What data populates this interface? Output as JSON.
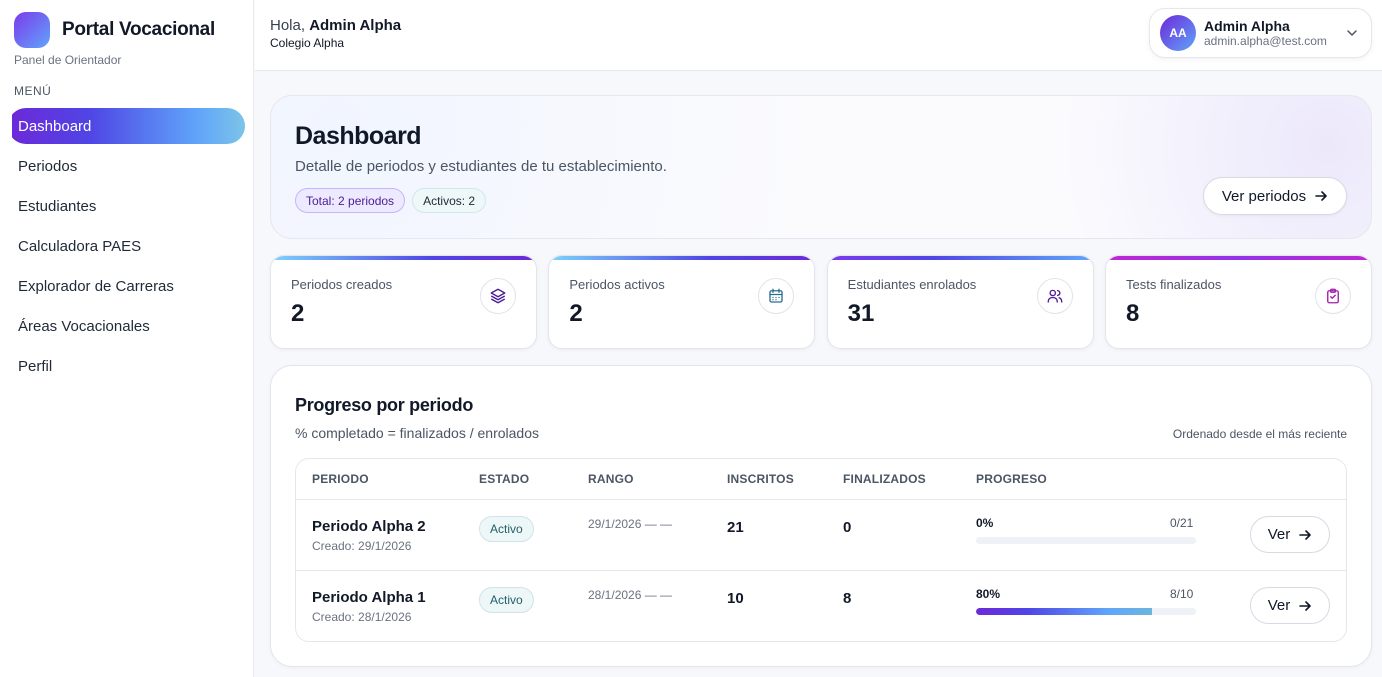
{
  "sidebar": {
    "brand_title": "Portal Vocacional",
    "brand_subtitle": "Panel de Orientador",
    "menu_label": "MENÚ",
    "items": [
      {
        "label": "Dashboard",
        "active": true
      },
      {
        "label": "Periodos",
        "active": false
      },
      {
        "label": "Estudiantes",
        "active": false
      },
      {
        "label": "Calculadora PAES",
        "active": false
      },
      {
        "label": "Explorador de Carreras",
        "active": false
      },
      {
        "label": "Áreas Vocacionales",
        "active": false
      },
      {
        "label": "Perfil",
        "active": false
      }
    ]
  },
  "topbar": {
    "greeting_prefix": "Hola, ",
    "greeting_name": "Admin Alpha",
    "school": "Colegio Alpha",
    "user": {
      "initials": "AA",
      "name": "Admin Alpha",
      "email": "admin.alpha@test.com"
    }
  },
  "hero": {
    "title": "Dashboard",
    "description": "Detalle de periodos y estudiantes de tu establecimiento.",
    "pill_total": "Total: 2 periodos",
    "pill_active": "Activos: 2",
    "button_label": "Ver periodos"
  },
  "stats": [
    {
      "label": "Periodos creados",
      "value": "2",
      "icon": "layers-icon"
    },
    {
      "label": "Periodos activos",
      "value": "2",
      "icon": "calendar-icon"
    },
    {
      "label": "Estudiantes enrolados",
      "value": "31",
      "icon": "users-icon"
    },
    {
      "label": "Tests finalizados",
      "value": "8",
      "icon": "clipboard-check-icon"
    }
  ],
  "progress": {
    "title": "Progreso por periodo",
    "subtitle": "% completado = finalizados / enrolados",
    "sort_note": "Ordenado desde el más reciente",
    "headers": {
      "periodo": "PERIODO",
      "estado": "ESTADO",
      "rango": "RANGO",
      "inscritos": "INSCRITOS",
      "finalizados": "FINALIZADOS",
      "progreso": "PROGRESO"
    },
    "rows": [
      {
        "name": "Periodo Alpha 2",
        "created": "Creado: 29/1/2026",
        "status": "Activo",
        "range": "29/1/2026 — —",
        "inscritos": "21",
        "finalizados": "0",
        "percent_label": "0%",
        "ratio": "0/21",
        "progress": 0,
        "button": "Ver"
      },
      {
        "name": "Periodo Alpha 1",
        "created": "Creado: 28/1/2026",
        "status": "Activo",
        "range": "28/1/2026 — —",
        "inscritos": "10",
        "finalizados": "8",
        "percent_label": "80%",
        "ratio": "8/10",
        "progress": 0.8,
        "button": "Ver"
      }
    ]
  },
  "colors": {
    "accent_purple": "#6d28d9",
    "accent_blue": "#60a5fa",
    "stat4_accent": "#c026d3"
  }
}
